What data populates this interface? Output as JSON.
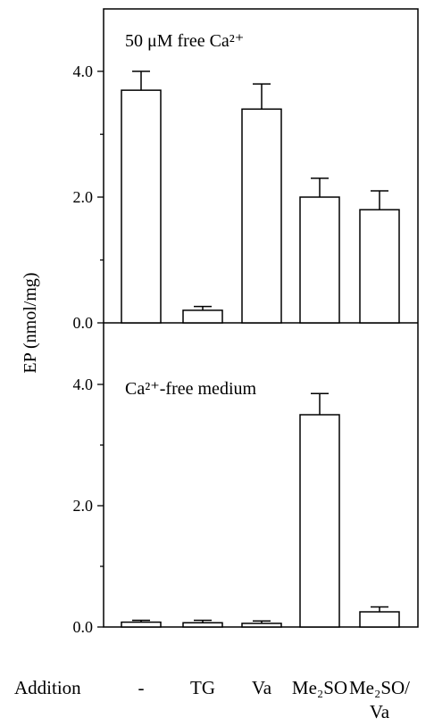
{
  "chart_data": {
    "type": "bar",
    "ylabel": "EP (nmol/mg)",
    "xlabel": "Addition",
    "categories": [
      [
        "-"
      ],
      [
        "TG"
      ],
      [
        "Va"
      ],
      [
        "Me₂SO"
      ],
      [
        "Me₂SO/",
        "Va"
      ]
    ],
    "panels": [
      {
        "title": "50 μM free Ca²⁺",
        "ylim": [
          0,
          4.8
        ],
        "yticks": [
          "0.0",
          "2.0",
          "4.0"
        ],
        "values": [
          3.7,
          0.2,
          3.4,
          2.0,
          1.8
        ],
        "errors": [
          0.3,
          0.06,
          0.4,
          0.3,
          0.3
        ]
      },
      {
        "title": "Ca²⁺-free medium",
        "ylim": [
          0,
          4.8
        ],
        "yticks": [
          "0.0",
          "2.0",
          "4.0"
        ],
        "values": [
          0.08,
          0.07,
          0.06,
          3.5,
          0.25
        ],
        "errors": [
          0.03,
          0.04,
          0.04,
          0.35,
          0.08
        ]
      }
    ],
    "grid": false,
    "legend": "none"
  }
}
